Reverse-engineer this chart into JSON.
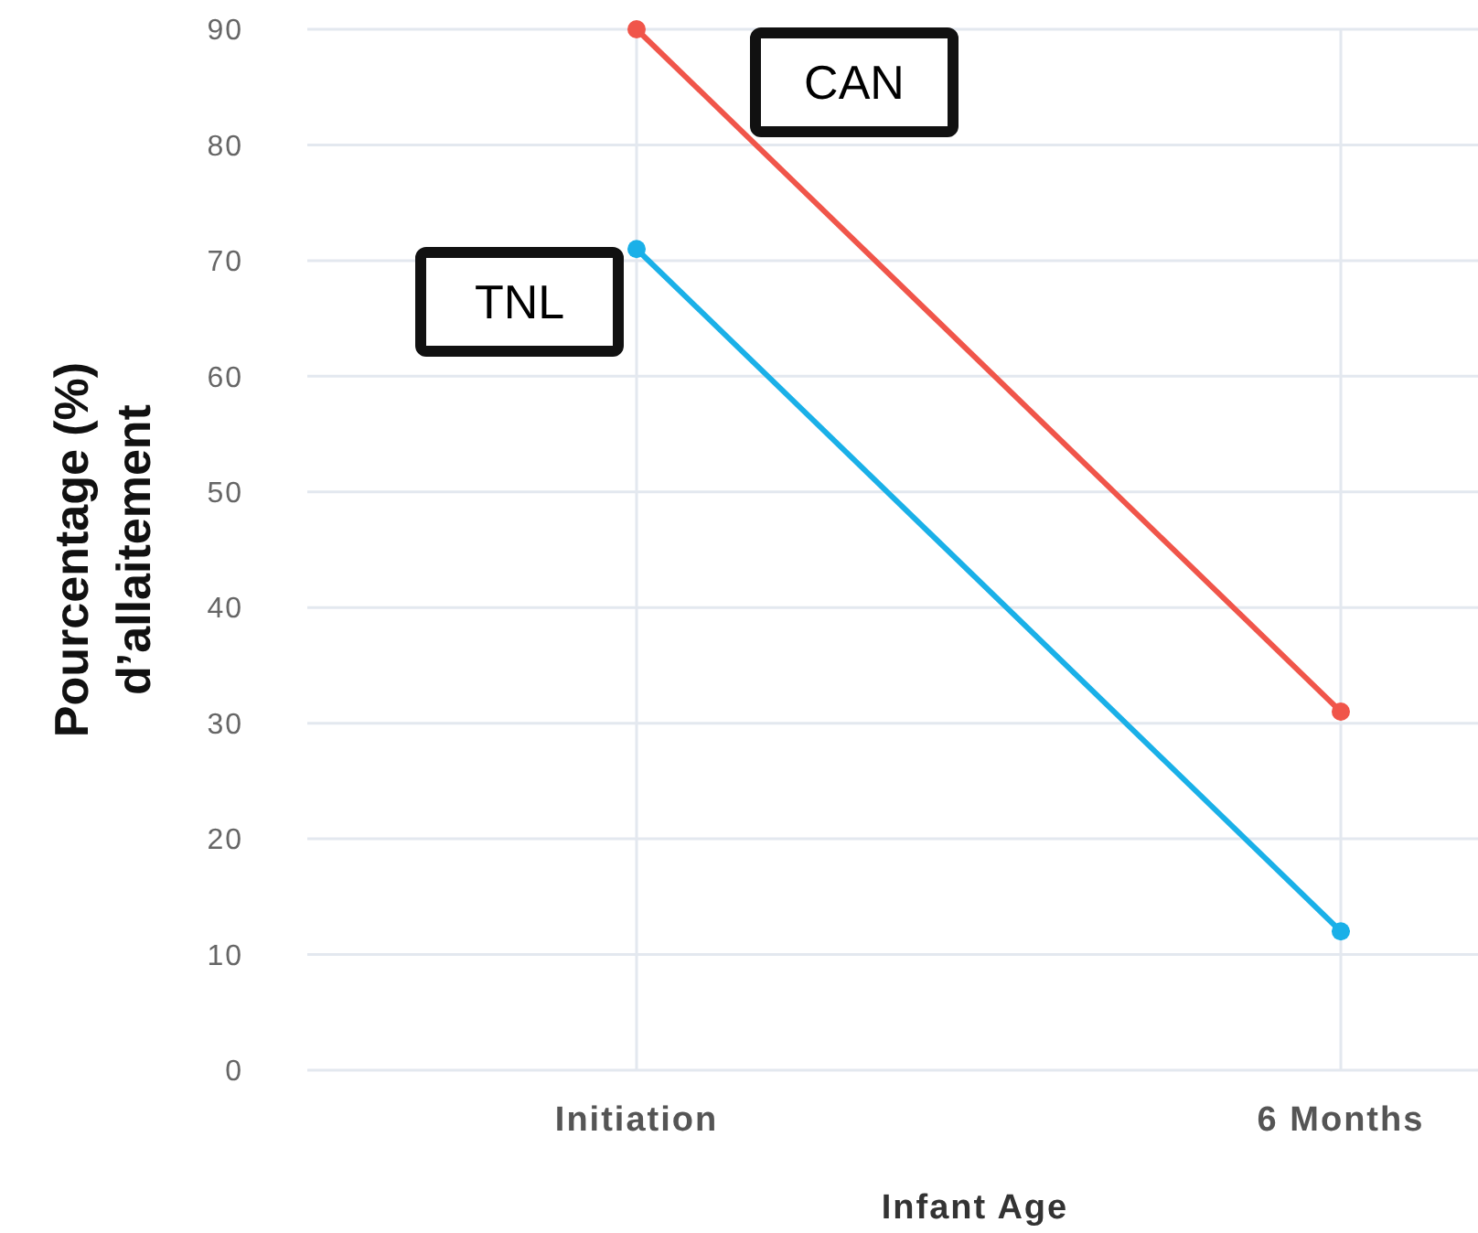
{
  "chart_data": {
    "type": "line",
    "xlabel": "Infant Age",
    "ylabel": "Pourcentage (%)\nd’allaitement",
    "categories": [
      "Initiation",
      "6 Months"
    ],
    "series": [
      {
        "name": "CAN",
        "color": "#f0554a",
        "values": [
          90,
          31
        ]
      },
      {
        "name": "TNL",
        "color": "#1ab0e8",
        "values": [
          71,
          12
        ]
      }
    ],
    "ylim": [
      0,
      90
    ],
    "yticks": [
      0,
      10,
      20,
      30,
      40,
      50,
      60,
      70,
      80,
      90
    ],
    "grid": true,
    "marker": "circle",
    "line_style": "solid"
  }
}
